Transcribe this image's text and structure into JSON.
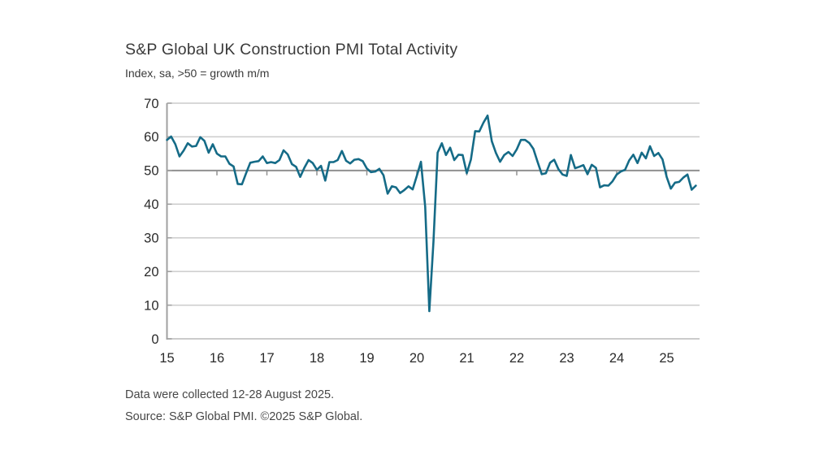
{
  "chart_data": {
    "type": "line",
    "title": "S&P Global UK Construction PMI Total Activity",
    "subtitle": "Index, sa, >50 = growth m/m",
    "series_name": "UK Construction PMI Total Activity Index",
    "frequency": "monthly",
    "start": "2015-01",
    "end": "2025-08",
    "values": [
      59.1,
      60.1,
      57.8,
      54.2,
      55.9,
      58.1,
      57.1,
      57.3,
      59.9,
      58.8,
      55.3,
      57.8,
      55.0,
      54.2,
      54.2,
      52.0,
      51.2,
      46.0,
      45.9,
      49.2,
      52.3,
      52.6,
      52.8,
      54.2,
      52.2,
      52.5,
      52.2,
      53.1,
      56.0,
      54.8,
      51.9,
      51.1,
      48.1,
      50.8,
      53.1,
      52.2,
      50.2,
      51.4,
      47.0,
      52.5,
      52.5,
      53.1,
      55.8,
      52.9,
      52.1,
      53.2,
      53.4,
      52.8,
      50.6,
      49.5,
      49.7,
      50.5,
      48.6,
      43.1,
      45.3,
      45.0,
      43.3,
      44.2,
      45.3,
      44.4,
      48.4,
      52.6,
      39.3,
      8.2,
      28.9,
      55.3,
      58.1,
      54.6,
      56.8,
      53.1,
      54.7,
      54.6,
      49.2,
      53.3,
      61.7,
      61.6,
      64.2,
      66.3,
      58.7,
      55.2,
      52.6,
      54.6,
      55.5,
      54.3,
      56.3,
      59.1,
      59.1,
      58.2,
      56.4,
      52.6,
      48.9,
      49.2,
      52.3,
      53.2,
      50.4,
      48.8,
      48.4,
      54.6,
      50.7,
      51.1,
      51.6,
      48.9,
      51.7,
      50.8,
      45.0,
      45.6,
      45.5,
      46.8,
      48.8,
      49.7,
      50.2,
      53.0,
      54.7,
      52.2,
      55.3,
      53.6,
      57.2,
      54.3,
      55.2,
      53.3,
      48.1,
      44.6,
      46.4,
      46.6,
      47.9,
      48.8,
      44.3,
      45.5
    ],
    "ylim": [
      0,
      70
    ],
    "yticks": [
      0,
      10,
      20,
      30,
      40,
      50,
      60,
      70
    ],
    "x_tick_labels": [
      "15",
      "16",
      "17",
      "18",
      "19",
      "20",
      "21",
      "22",
      "23",
      "24",
      "25"
    ],
    "reference_line": 50,
    "grid": "horizontal",
    "legend": "none",
    "line_color": "#156b87",
    "grid_color": "#cbcbcb",
    "reference_line_color": "#909090",
    "axis_color": "#a0a0a0",
    "tick_label_color": "#2b2b2b"
  },
  "footer": {
    "line1": "Data were collected 12-28 August 2025.",
    "line2": "Source: S&P Global PMI. ©2025 S&P Global."
  }
}
